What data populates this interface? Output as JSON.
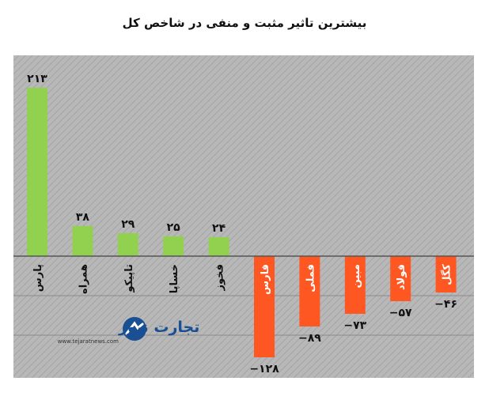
{
  "chart_data": {
    "type": "bar",
    "title": "بیشترین تاثیر مثبت و منفی در شاخص کل",
    "categories": [
      "پارس",
      "همراه",
      "تاپیکو",
      "خساپا",
      "فخوز",
      "فارس",
      "فملی",
      "مبین",
      "فولاد",
      "کگل"
    ],
    "values": [
      213,
      38,
      29,
      25,
      24,
      -128,
      -89,
      -73,
      -57,
      -46
    ],
    "value_labels": [
      "۲۱۳",
      "۳۸",
      "۲۹",
      "۲۵",
      "۲۴",
      "−۱۲۸",
      "−۸۹",
      "−۷۳",
      "−۵۷",
      "−۴۶"
    ],
    "ylim": [
      -150,
      250
    ],
    "grid": true,
    "colors": {
      "positive": "#92d050",
      "negative": "#ff5722",
      "background": "#b3b3b3"
    }
  },
  "watermark": {
    "brand": "تجارت نیوز",
    "url": "www.tejaratnews.com"
  }
}
